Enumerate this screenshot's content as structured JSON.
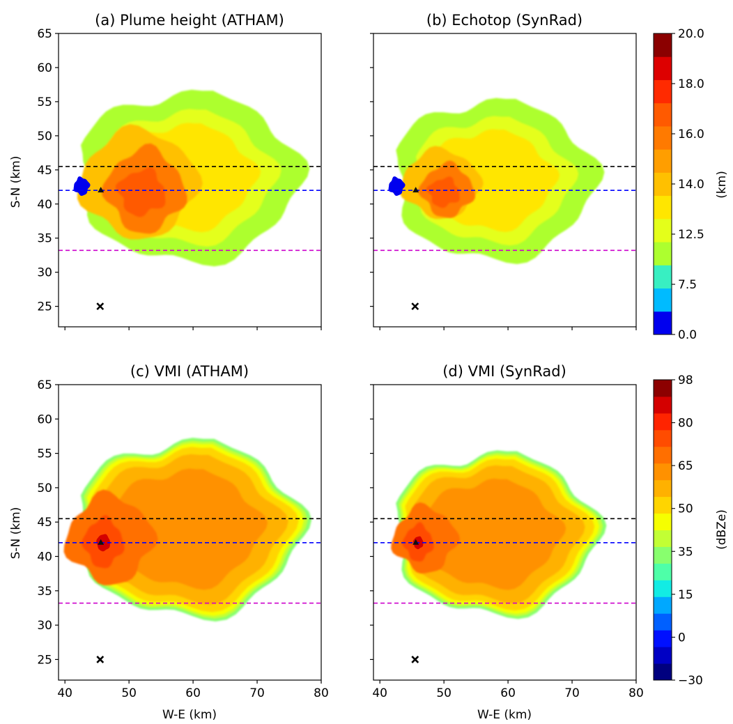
{
  "figure": {
    "xlabel": "W-E (km)",
    "ylabel": "S-N (km)",
    "xticks": [
      40,
      50,
      60,
      70,
      80
    ],
    "yticks": [
      25,
      30,
      35,
      40,
      45,
      50,
      55,
      60,
      65
    ],
    "xlim": [
      39,
      80
    ],
    "ylim": [
      22,
      65
    ]
  },
  "chart_data": [
    {
      "type": "heatmap",
      "title": "(a) Plume height (ATHAM)",
      "xlabel": "",
      "ylabel": "S-N (km)",
      "xlim": [
        39,
        80
      ],
      "ylim": [
        22,
        65
      ],
      "variable": "height",
      "lines_y": [
        45.5,
        42.0,
        33.2
      ],
      "line_colors": [
        "#000000",
        "#0000ff",
        "#cc00cc"
      ],
      "triangle_marker": [
        45.6,
        42.0
      ],
      "cross_marker": [
        45.5,
        25.0
      ],
      "blue_blob": [
        42.6,
        42.6
      ],
      "extent": {
        "west": 42.8,
        "east": 76.5,
        "south": 31.5,
        "north": 56.5
      },
      "core": {
        "x": 52.5,
        "y": 42.0,
        "rx": 6.0,
        "ry": 6.0
      }
    },
    {
      "type": "heatmap",
      "title": "(b) Echotop (SynRad)",
      "xlabel": "",
      "ylabel": "",
      "xlim": [
        39,
        80
      ],
      "ylim": [
        22,
        65
      ],
      "variable": "height",
      "lines_y": [
        45.5,
        42.0,
        33.2
      ],
      "line_colors": [
        "#000000",
        "#0000ff",
        "#cc00cc"
      ],
      "triangle_marker": [
        45.6,
        42.0
      ],
      "cross_marker": [
        45.5,
        25.0
      ],
      "blue_blob": [
        42.6,
        42.6
      ],
      "extent": {
        "west": 42.8,
        "east": 73.5,
        "south": 31.8,
        "north": 55.3
      },
      "core": {
        "x": 50.5,
        "y": 42.0,
        "rx": 4.0,
        "ry": 3.8
      }
    },
    {
      "type": "heatmap",
      "title": "(c) VMI (ATHAM)",
      "xlabel": "W-E (km)",
      "ylabel": "S-N (km)",
      "xlim": [
        39,
        80
      ],
      "ylim": [
        22,
        65
      ],
      "variable": "vmi",
      "lines_y": [
        45.5,
        42.0,
        33.2
      ],
      "line_colors": [
        "#000000",
        "#0000ff",
        "#cc00cc"
      ],
      "triangle_marker": [
        45.6,
        42.0
      ],
      "cross_marker": [
        45.5,
        25.0
      ],
      "extent": {
        "west": 42.8,
        "east": 76.8,
        "south": 31.2,
        "north": 57.0
      },
      "core": {
        "x": 46.0,
        "y": 42.0,
        "rx": 3.0,
        "ry": 3.5
      }
    },
    {
      "type": "heatmap",
      "title": "(d) VMI (SynRad)",
      "xlabel": "W-E (km)",
      "ylabel": "",
      "xlim": [
        39,
        80
      ],
      "ylim": [
        22,
        65
      ],
      "variable": "vmi",
      "lines_y": [
        45.5,
        42.0,
        33.2
      ],
      "line_colors": [
        "#000000",
        "#0000ff",
        "#cc00cc"
      ],
      "triangle_marker": [
        45.6,
        42.0
      ],
      "cross_marker": [
        45.5,
        25.0
      ],
      "extent": {
        "west": 42.8,
        "east": 73.8,
        "south": 31.5,
        "north": 55.2
      },
      "core": {
        "x": 46.0,
        "y": 42.0,
        "rx": 2.2,
        "ry": 2.6
      }
    }
  ],
  "colorbars": [
    {
      "label": "(km)",
      "min": 0.0,
      "max": 20.0,
      "ticks": [
        "0.0",
        "7.5",
        "12.5",
        "14.0",
        "16.0",
        "18.0",
        "20.0"
      ],
      "colors": [
        "#0000ee",
        "#00bbff",
        "#38efc2",
        "#adff2f",
        "#e4ff1a",
        "#ffe600",
        "#ffc000",
        "#ff9e00",
        "#ff7a00",
        "#ff5a00",
        "#ff2a00",
        "#dd0000",
        "#8b0000"
      ]
    },
    {
      "label": "(dBZe)",
      "min": -30,
      "max": 98,
      "ticks": [
        "−30",
        "0",
        "15",
        "35",
        "50",
        "65",
        "80",
        "98"
      ],
      "colors": [
        "#00007f",
        "#0000c4",
        "#0010ff",
        "#0060ff",
        "#00a8ff",
        "#12ece4",
        "#4effa8",
        "#88ff6e",
        "#c2ff34",
        "#f6ff00",
        "#ffd500",
        "#ffb100",
        "#ff9100",
        "#ff6f00",
        "#ff4c00",
        "#ff2400",
        "#d40000",
        "#8c0000"
      ]
    }
  ]
}
